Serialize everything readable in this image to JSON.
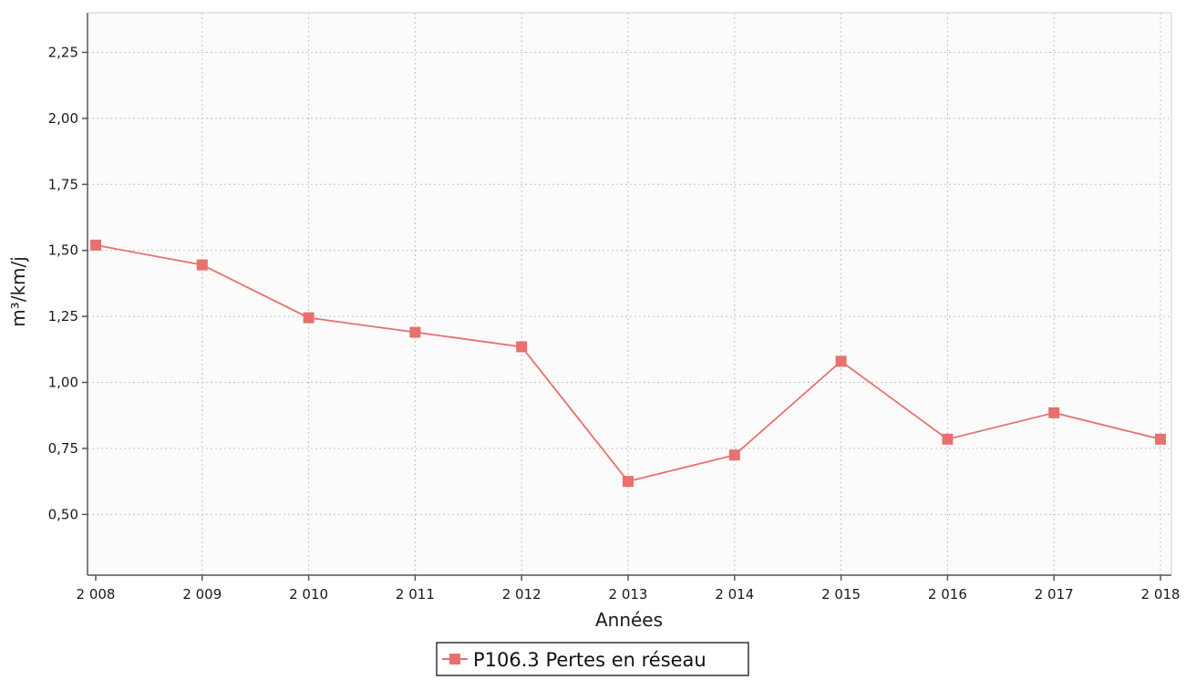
{
  "chart_data": {
    "type": "line",
    "xlabel": "Années",
    "ylabel": "m³/km/j",
    "categories": [
      "2 008",
      "2 009",
      "2 010",
      "2 011",
      "2 012",
      "2 013",
      "2 014",
      "2 015",
      "2 016",
      "2 017",
      "2 018"
    ],
    "series": [
      {
        "name": "P106.3 Pertes en réseau",
        "color": "#e8706e",
        "values": [
          1.52,
          1.445,
          1.245,
          1.19,
          1.135,
          0.625,
          0.725,
          1.08,
          0.785,
          0.885,
          0.785
        ]
      }
    ],
    "ylim": [
      0.27,
      2.4
    ],
    "yticks": [
      "2,25",
      "2,00",
      "1,75",
      "1,50",
      "1,25",
      "1,00",
      "0,75",
      "0,50"
    ],
    "ytick_values": [
      2.25,
      2.0,
      1.75,
      1.5,
      1.25,
      1.0,
      0.75,
      0.5
    ],
    "grid": true,
    "legend_position": "bottom-center"
  }
}
